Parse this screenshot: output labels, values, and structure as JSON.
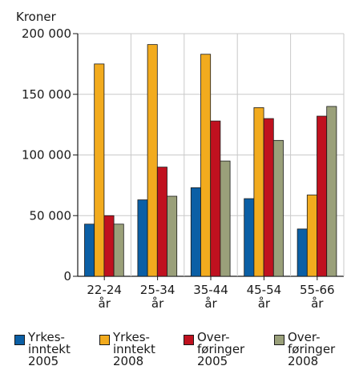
{
  "chart_data": {
    "type": "bar",
    "ylabel": "Kroner",
    "ylim": [
      0,
      200000
    ],
    "yticks": [
      {
        "value": 0,
        "label": "0"
      },
      {
        "value": 50000,
        "label": "50 000"
      },
      {
        "value": 100000,
        "label": "100 000"
      },
      {
        "value": 150000,
        "label": "150 000"
      },
      {
        "value": 200000,
        "label": "200 000"
      }
    ],
    "categories": [
      {
        "line1": "22-24",
        "line2": "år"
      },
      {
        "line1": "25-34",
        "line2": "år"
      },
      {
        "line1": "35-44",
        "line2": "år"
      },
      {
        "line1": "45-54",
        "line2": "år"
      },
      {
        "line1": "55-66",
        "line2": "år"
      }
    ],
    "grid": true,
    "legend_position": "bottom",
    "series": [
      {
        "name": "Yrkes-\ninntekt\n2005",
        "color": "#0b5fa5",
        "values": [
          43000,
          63000,
          73000,
          64000,
          39000
        ]
      },
      {
        "name": "Yrkes-\ninntekt\n2008",
        "color": "#f2ab1e",
        "values": [
          175000,
          191000,
          183000,
          139000,
          67000
        ]
      },
      {
        "name": "Over-\nføringer\n2005",
        "color": "#c0111f",
        "values": [
          50000,
          90000,
          128000,
          130000,
          132000
        ]
      },
      {
        "name": "Over-\nføringer\n2008",
        "color": "#9aa07a",
        "values": [
          43000,
          66000,
          95000,
          112000,
          140000
        ]
      }
    ]
  }
}
